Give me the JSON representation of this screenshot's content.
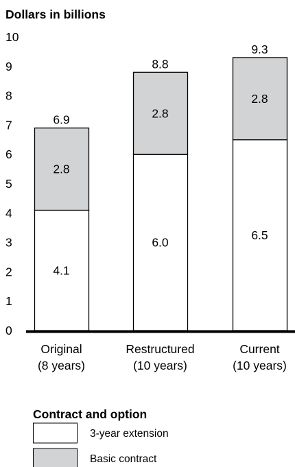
{
  "chart_data": {
    "type": "bar",
    "stacked": true,
    "ylabel": "Dollars in billions",
    "xlabel": "Contract and option",
    "ylim": [
      0,
      10
    ],
    "yticks": [
      "0",
      "1",
      "2",
      "3",
      "4",
      "5",
      "6",
      "7",
      "8",
      "9",
      "10"
    ],
    "grid": false,
    "legend_position": "bottom-left",
    "categories": [
      [
        "Original",
        "(8 years)"
      ],
      [
        "Restructured",
        "(10 years)"
      ],
      [
        "Current",
        "(10 years)"
      ]
    ],
    "series": [
      {
        "name": "3-year extension",
        "values": [
          4.1,
          6.0,
          6.5
        ],
        "labels": [
          "4.1",
          "6.0",
          "6.5"
        ],
        "color": "#ffffff"
      },
      {
        "name": "Basic contract",
        "values": [
          2.8,
          2.8,
          2.8
        ],
        "labels": [
          "2.8",
          "2.8",
          "2.8"
        ],
        "color": "#d1d3d4"
      }
    ],
    "totals": [
      6.9,
      8.8,
      9.3
    ],
    "total_labels": [
      "6.9",
      "8.8",
      "9.3"
    ],
    "axis_color": "#000000"
  }
}
